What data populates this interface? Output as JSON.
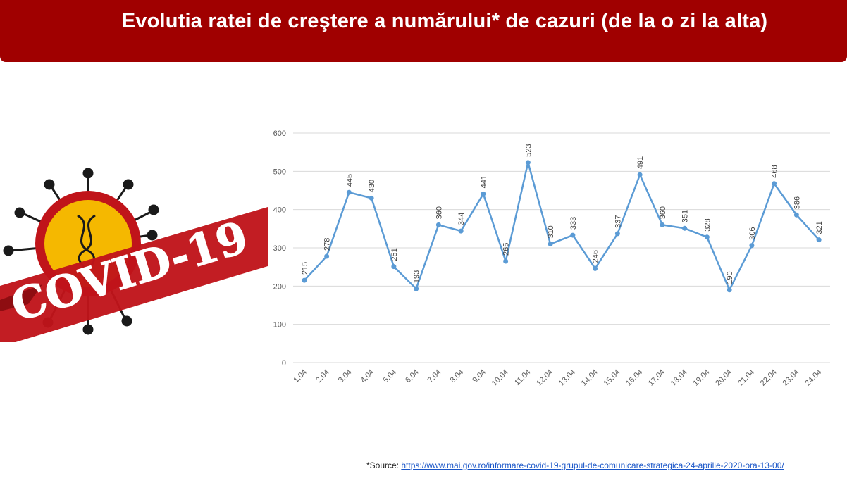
{
  "header": {
    "title": "Evolutia ratei de creştere a numărului* de cazuri (de la o zi la alta)"
  },
  "logo": {
    "text": "COVID-19"
  },
  "source": {
    "label": "*Source: ",
    "link": "https://www.mai.gov.ro/informare-covid-19-grupul-de-comunicare-strategica-24-aprilie-2020-ora-13-00/"
  },
  "colors": {
    "header": "#a00000",
    "line": "#5b9bd5",
    "grid": "#d9d9d9",
    "logo_red": "#c0141a"
  },
  "chart_data": {
    "type": "line",
    "title": "",
    "xlabel": "",
    "ylabel": "",
    "ylim": [
      0,
      600
    ],
    "yticks": [
      0,
      100,
      200,
      300,
      400,
      500,
      600
    ],
    "grid": true,
    "categories": [
      "1,04",
      "2,04",
      "3,04",
      "4,04",
      "5,04",
      "6,04",
      "7,04",
      "8,04",
      "9,04",
      "10,04",
      "11,04",
      "12,04",
      "13,04",
      "14,04",
      "15,04",
      "16,04",
      "17,04",
      "18,04",
      "19,04",
      "20,04",
      "21,04",
      "22,04",
      "23,04",
      "24,04"
    ],
    "series": [
      {
        "values": [
          215,
          278,
          445,
          430,
          251,
          193,
          360,
          344,
          441,
          265,
          523,
          310,
          333,
          246,
          337,
          491,
          360,
          351,
          328,
          190,
          306,
          468,
          386,
          321
        ]
      }
    ]
  }
}
